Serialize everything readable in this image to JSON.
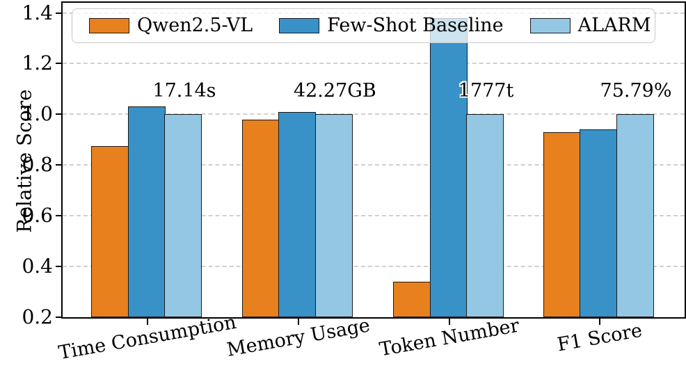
{
  "chart_data": {
    "type": "bar",
    "title": "",
    "ylabel": "Relative Score",
    "xlabel": "",
    "categories": [
      "Time Consumption",
      "Memory Usage",
      "Token Number",
      "F1 Score"
    ],
    "series": [
      {
        "name": "Qwen2.5-VL",
        "color": "#E8801E",
        "values": [
          0.875,
          0.98,
          0.34,
          0.93
        ]
      },
      {
        "name": "Few-Shot Baseline",
        "color": "#3892C8",
        "values": [
          1.03,
          1.01,
          1.38,
          0.94
        ]
      },
      {
        "name": "ALARM",
        "color": "#94C7E4",
        "values": [
          1.0,
          1.0,
          1.0,
          1.0
        ]
      }
    ],
    "annotations": [
      {
        "text": "17.14s",
        "category": "Time Consumption"
      },
      {
        "text": "42.27GB",
        "category": "Memory Usage"
      },
      {
        "text": "1777t",
        "category": "Token Number"
      },
      {
        "text": "75.79%",
        "category": "F1 Score"
      }
    ],
    "annotation_over_series": "ALARM",
    "annotation_anchor_value": 1.05,
    "yticks": [
      0.2,
      0.4,
      0.6,
      0.8,
      1.0,
      1.2,
      1.4
    ],
    "ylim": [
      0.2,
      1.44
    ],
    "grid": "horizontal-dashed",
    "grid_color": "#cccccc",
    "bar_edge_color": "#1a1a1a",
    "legend_position": "top-inside",
    "group_center_fractions": [
      0.137,
      0.379,
      0.622,
      0.863
    ]
  }
}
